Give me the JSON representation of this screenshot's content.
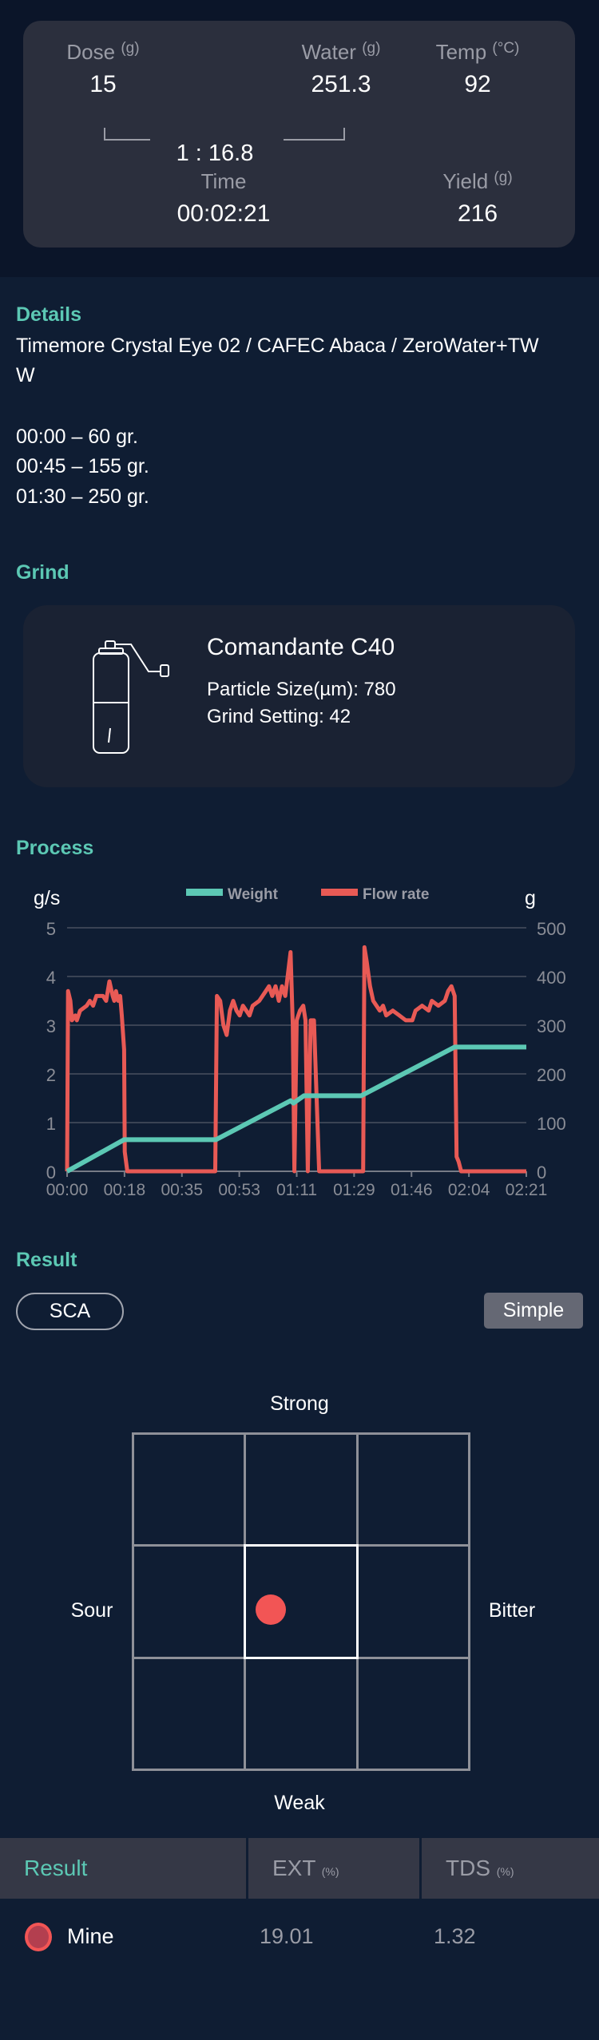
{
  "summary": {
    "dose": {
      "label": "Dose",
      "unit": "(g)",
      "value": "15"
    },
    "water": {
      "label": "Water",
      "unit": "(g)",
      "value": "251.3"
    },
    "temp": {
      "label": "Temp",
      "unit": "(°C)",
      "value": "92"
    },
    "ratio": "1 : 16.8",
    "time": {
      "label": "Time",
      "value": "00:02:21"
    },
    "yield": {
      "label": "Yield",
      "unit": "(g)",
      "value": "216"
    }
  },
  "details": {
    "title": "Details",
    "line1": "Timemore Crystal Eye 02 / CAFEC Abaca / ZeroWater+TW",
    "line2": "W",
    "steps": [
      "00:00 – 60 gr.",
      "00:45 – 155 gr.",
      "01:30 – 250 gr."
    ]
  },
  "grind": {
    "title": "Grind",
    "grinder": "Comandante C40",
    "particle_size": "Particle Size(µm): 780",
    "grind_setting": "Grind Setting: 42",
    "icon": "hand-grinder-icon"
  },
  "process": {
    "title": "Process"
  },
  "chart_data": {
    "type": "line",
    "left_axis_label": "g/s",
    "right_axis_label": "g",
    "left_ylim": [
      0,
      5
    ],
    "right_ylim": [
      0,
      500
    ],
    "left_ticks": [
      "0",
      "1",
      "2",
      "3",
      "4",
      "5"
    ],
    "right_ticks": [
      "0",
      "100",
      "200",
      "300",
      "400",
      "500"
    ],
    "x_ticks": [
      "00:00",
      "00:18",
      "00:35",
      "00:53",
      "01:11",
      "01:29",
      "01:46",
      "02:04",
      "02:21"
    ],
    "x_range_seconds": [
      0,
      141
    ],
    "grid": "horizontal",
    "legend_placement": "top",
    "series": [
      {
        "name": "Weight",
        "axis": "right",
        "color": "#5cc8b4",
        "points": [
          [
            0,
            0
          ],
          [
            17.5,
            65
          ],
          [
            45.7,
            65
          ],
          [
            68.6,
            145
          ],
          [
            69.5,
            140
          ],
          [
            72.7,
            155
          ],
          [
            90.3,
            155
          ],
          [
            119,
            255
          ],
          [
            141,
            255
          ]
        ]
      },
      {
        "name": "Flow rate",
        "axis": "left",
        "color": "#e85a55",
        "points": [
          [
            0,
            0
          ],
          [
            0.3,
            3.7
          ],
          [
            1,
            3.5
          ],
          [
            1.5,
            3.1
          ],
          [
            2.5,
            3.2
          ],
          [
            3,
            3.1
          ],
          [
            4,
            3.3
          ],
          [
            6,
            3.4
          ],
          [
            7,
            3.5
          ],
          [
            8,
            3.4
          ],
          [
            9,
            3.6
          ],
          [
            11,
            3.6
          ],
          [
            12,
            3.5
          ],
          [
            13,
            3.9
          ],
          [
            14,
            3.6
          ],
          [
            14.5,
            3.5
          ],
          [
            15,
            3.7
          ],
          [
            15.7,
            3.5
          ],
          [
            16.3,
            3.6
          ],
          [
            16.8,
            3.2
          ],
          [
            17.5,
            2.5
          ],
          [
            17.7,
            0.4
          ],
          [
            18.5,
            0
          ],
          [
            45.5,
            0
          ],
          [
            46,
            3.6
          ],
          [
            47,
            3.5
          ],
          [
            48,
            3.0
          ],
          [
            49,
            2.8
          ],
          [
            50,
            3.3
          ],
          [
            51,
            3.5
          ],
          [
            52,
            3.3
          ],
          [
            53,
            3.2
          ],
          [
            54,
            3.4
          ],
          [
            55,
            3.3
          ],
          [
            56,
            3.2
          ],
          [
            57,
            3.4
          ],
          [
            59,
            3.5
          ],
          [
            61,
            3.7
          ],
          [
            62,
            3.8
          ],
          [
            63,
            3.6
          ],
          [
            64,
            3.8
          ],
          [
            65,
            3.5
          ],
          [
            66,
            3.8
          ],
          [
            67,
            3.6
          ],
          [
            68.6,
            4.5
          ],
          [
            69.3,
            3.0
          ],
          [
            69.8,
            0
          ],
          [
            70.5,
            3.1
          ],
          [
            71.5,
            3.3
          ],
          [
            72.5,
            3.4
          ],
          [
            73.2,
            3.1
          ],
          [
            73.9,
            0
          ],
          [
            74.8,
            3.1
          ],
          [
            75.8,
            3.1
          ],
          [
            77.4,
            0
          ],
          [
            90.9,
            0
          ],
          [
            91.3,
            4.6
          ],
          [
            92,
            4.3
          ],
          [
            93,
            3.8
          ],
          [
            94,
            3.5
          ],
          [
            95,
            3.4
          ],
          [
            96,
            3.3
          ],
          [
            97,
            3.4
          ],
          [
            98,
            3.2
          ],
          [
            100,
            3.3
          ],
          [
            102,
            3.2
          ],
          [
            104,
            3.1
          ],
          [
            106,
            3.1
          ],
          [
            107,
            3.3
          ],
          [
            109,
            3.4
          ],
          [
            111,
            3.3
          ],
          [
            112,
            3.5
          ],
          [
            114,
            3.4
          ],
          [
            116,
            3.5
          ],
          [
            117,
            3.7
          ],
          [
            118,
            3.8
          ],
          [
            119,
            3.6
          ],
          [
            119.6,
            0.3
          ],
          [
            120.2,
            0.2
          ],
          [
            121,
            0
          ],
          [
            141,
            0
          ]
        ]
      }
    ]
  },
  "result": {
    "title": "Result",
    "sca_label": "SCA",
    "simple_label": "Simple",
    "compass": {
      "top": "Strong",
      "bottom": "Weak",
      "left": "Sour",
      "right": "Bitter"
    },
    "marker_cell": "center",
    "marker_color": "#f25555",
    "table": {
      "headers": {
        "result": "Result",
        "ext": "EXT",
        "ext_unit": "(%)",
        "tds": "TDS",
        "tds_unit": "(%)"
      },
      "rows": [
        {
          "name": "Mine",
          "ext": "19.01",
          "tds": "1.32",
          "color": "#b33f4f"
        }
      ]
    }
  }
}
